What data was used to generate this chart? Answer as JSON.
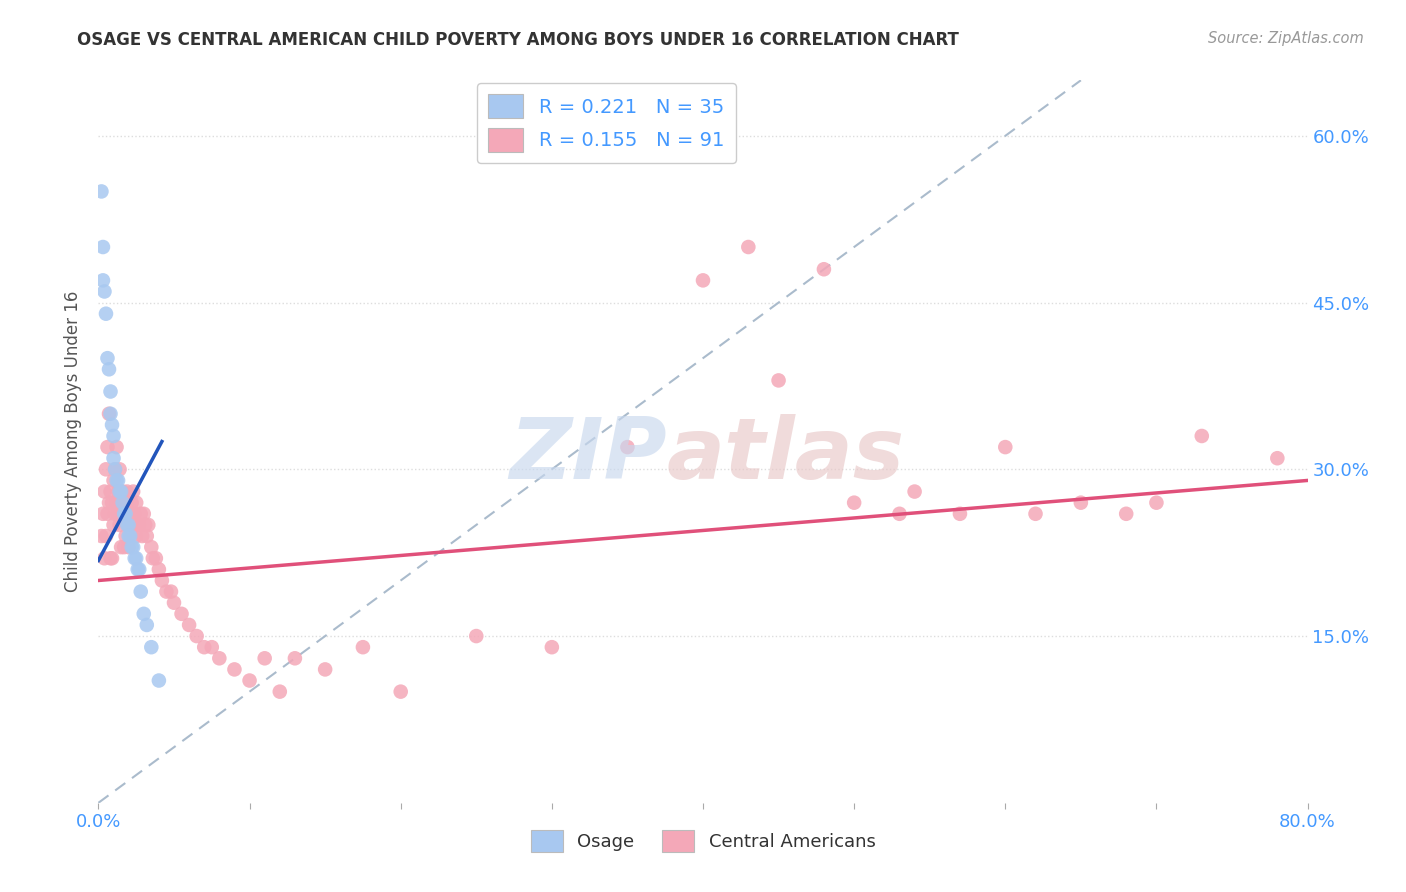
{
  "title": "OSAGE VS CENTRAL AMERICAN CHILD POVERTY AMONG BOYS UNDER 16 CORRELATION CHART",
  "source": "Source: ZipAtlas.com",
  "ylabel": "Child Poverty Among Boys Under 16",
  "xlim": [
    0,
    0.8
  ],
  "ylim": [
    0,
    0.65
  ],
  "ytick_positions": [
    0.15,
    0.3,
    0.45,
    0.6
  ],
  "ytick_labels": [
    "15.0%",
    "30.0%",
    "45.0%",
    "60.0%"
  ],
  "xtick_positions": [
    0.0,
    0.1,
    0.2,
    0.3,
    0.4,
    0.5,
    0.6,
    0.7,
    0.8
  ],
  "xtick_labels": [
    "0.0%",
    "",
    "",
    "",
    "",
    "",
    "",
    "",
    "80.0%"
  ],
  "legend_line1": "R = 0.221   N = 35",
  "legend_line2": "R = 0.155   N = 91",
  "osage_color": "#a8c8f0",
  "ca_color": "#f4a8b8",
  "osage_line_color": "#2255bb",
  "ca_line_color": "#e0507a",
  "diag_color": "#aabbcc",
  "watermark_zip_color": "#c8d8ee",
  "watermark_atlas_color": "#e8c8c8",
  "bg_color": "#ffffff",
  "grid_color": "#dddddd",
  "title_color": "#333333",
  "source_color": "#999999",
  "ylabel_color": "#555555",
  "tick_label_color": "#4499ff",
  "osage_x": [
    0.002,
    0.003,
    0.003,
    0.004,
    0.005,
    0.006,
    0.007,
    0.008,
    0.008,
    0.009,
    0.01,
    0.01,
    0.011,
    0.012,
    0.013,
    0.014,
    0.015,
    0.016,
    0.017,
    0.018,
    0.019,
    0.02,
    0.02,
    0.021,
    0.022,
    0.023,
    0.024,
    0.025,
    0.026,
    0.027,
    0.028,
    0.03,
    0.032,
    0.035,
    0.04
  ],
  "osage_y": [
    0.55,
    0.5,
    0.47,
    0.46,
    0.44,
    0.4,
    0.39,
    0.37,
    0.35,
    0.34,
    0.33,
    0.31,
    0.3,
    0.29,
    0.29,
    0.28,
    0.28,
    0.27,
    0.26,
    0.26,
    0.25,
    0.25,
    0.24,
    0.24,
    0.23,
    0.23,
    0.22,
    0.22,
    0.21,
    0.21,
    0.19,
    0.17,
    0.16,
    0.14,
    0.11
  ],
  "osage_line_x": [
    0.0,
    0.042
  ],
  "osage_line_y": [
    0.218,
    0.325
  ],
  "ca_line_x": [
    0.0,
    0.8
  ],
  "ca_line_y": [
    0.2,
    0.29
  ],
  "diag_line_x": [
    0.0,
    0.65
  ],
  "diag_line_y": [
    0.0,
    0.65
  ],
  "ca_x": [
    0.002,
    0.003,
    0.004,
    0.004,
    0.005,
    0.005,
    0.006,
    0.006,
    0.007,
    0.007,
    0.008,
    0.008,
    0.009,
    0.009,
    0.01,
    0.01,
    0.011,
    0.011,
    0.012,
    0.012,
    0.013,
    0.013,
    0.014,
    0.014,
    0.015,
    0.015,
    0.016,
    0.016,
    0.017,
    0.017,
    0.018,
    0.018,
    0.019,
    0.019,
    0.02,
    0.02,
    0.021,
    0.022,
    0.022,
    0.023,
    0.024,
    0.025,
    0.025,
    0.026,
    0.027,
    0.028,
    0.029,
    0.03,
    0.031,
    0.032,
    0.033,
    0.035,
    0.036,
    0.038,
    0.04,
    0.042,
    0.045,
    0.048,
    0.05,
    0.055,
    0.06,
    0.065,
    0.07,
    0.075,
    0.08,
    0.09,
    0.1,
    0.11,
    0.12,
    0.13,
    0.15,
    0.175,
    0.2,
    0.25,
    0.3,
    0.35,
    0.4,
    0.43,
    0.45,
    0.48,
    0.5,
    0.53,
    0.54,
    0.57,
    0.6,
    0.62,
    0.65,
    0.68,
    0.7,
    0.73,
    0.78
  ],
  "ca_y": [
    0.24,
    0.26,
    0.22,
    0.28,
    0.24,
    0.3,
    0.26,
    0.32,
    0.27,
    0.35,
    0.28,
    0.22,
    0.27,
    0.22,
    0.25,
    0.29,
    0.26,
    0.3,
    0.27,
    0.32,
    0.28,
    0.26,
    0.25,
    0.3,
    0.26,
    0.23,
    0.28,
    0.26,
    0.27,
    0.23,
    0.26,
    0.24,
    0.28,
    0.27,
    0.25,
    0.23,
    0.26,
    0.27,
    0.25,
    0.28,
    0.26,
    0.27,
    0.24,
    0.25,
    0.25,
    0.26,
    0.24,
    0.26,
    0.25,
    0.24,
    0.25,
    0.23,
    0.22,
    0.22,
    0.21,
    0.2,
    0.19,
    0.19,
    0.18,
    0.17,
    0.16,
    0.15,
    0.14,
    0.14,
    0.13,
    0.12,
    0.11,
    0.13,
    0.1,
    0.13,
    0.12,
    0.14,
    0.1,
    0.15,
    0.14,
    0.32,
    0.47,
    0.5,
    0.38,
    0.48,
    0.27,
    0.26,
    0.28,
    0.26,
    0.32,
    0.26,
    0.27,
    0.26,
    0.27,
    0.33,
    0.31
  ]
}
